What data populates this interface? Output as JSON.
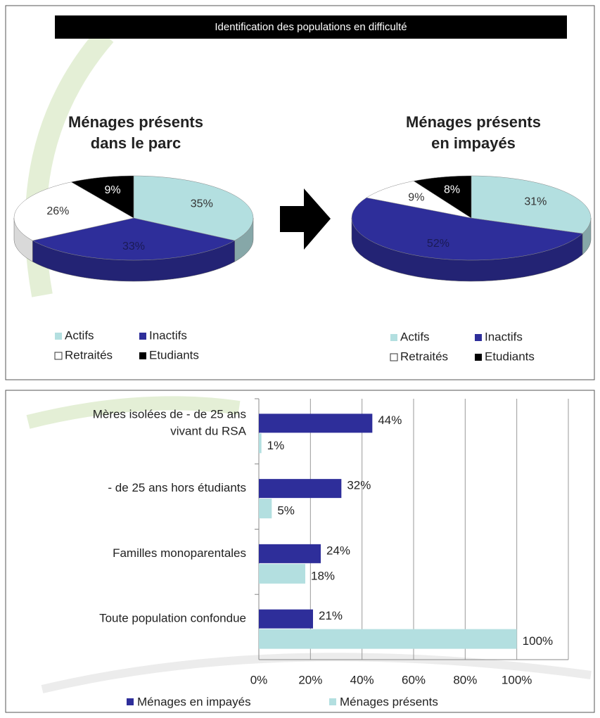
{
  "header": {
    "title": "Identification des populations en difficulté"
  },
  "chart_data": [
    {
      "type": "pie",
      "title": [
        "Ménages présents",
        "dans le parc"
      ],
      "categories": [
        "Actifs",
        "Inactifs",
        "Retraités",
        "Etudiants"
      ],
      "values": [
        35,
        33,
        26,
        9
      ],
      "value_labels": [
        "35%",
        "33%",
        "26%",
        "9%"
      ],
      "colors": [
        "#b3dfe0",
        "#2e2e9a",
        "#ffffff",
        "#000000"
      ],
      "legend": "bottom"
    },
    {
      "type": "pie",
      "title": [
        "Ménages présents",
        "en impayés"
      ],
      "categories": [
        "Actifs",
        "Inactifs",
        "Retraités",
        "Etudiants"
      ],
      "values": [
        31,
        52,
        9,
        8
      ],
      "value_labels": [
        "31%",
        "52%",
        "9%",
        "8%"
      ],
      "colors": [
        "#b3dfe0",
        "#2e2e9a",
        "#ffffff",
        "#000000"
      ],
      "legend": "bottom"
    },
    {
      "type": "bar",
      "orientation": "horizontal",
      "categories": [
        "Mères isolées de - de 25 ans\nvivant du RSA",
        "- de 25 ans hors étudiants",
        "Familles monoparentales",
        "Toute population confondue"
      ],
      "series": [
        {
          "name": "Ménages en impayés",
          "color": "#2e2e9a",
          "values": [
            44,
            32,
            24,
            21
          ],
          "value_labels": [
            "44%",
            "32%",
            "24%",
            "21%"
          ]
        },
        {
          "name": "Ménages présents",
          "color": "#b3dfe0",
          "values": [
            1,
            5,
            18,
            100
          ],
          "value_labels": [
            "1%",
            "5%",
            "18%",
            "100%"
          ]
        }
      ],
      "xlim": [
        0,
        120
      ],
      "xticks": [
        {
          "value": 0,
          "label": "0%"
        },
        {
          "value": 20,
          "label": "20%"
        },
        {
          "value": 40,
          "label": "40%"
        },
        {
          "value": 60,
          "label": "60%"
        },
        {
          "value": 80,
          "label": "80%"
        },
        {
          "value": 100,
          "label": "100%"
        }
      ],
      "grid": true,
      "legend": "bottom"
    }
  ]
}
